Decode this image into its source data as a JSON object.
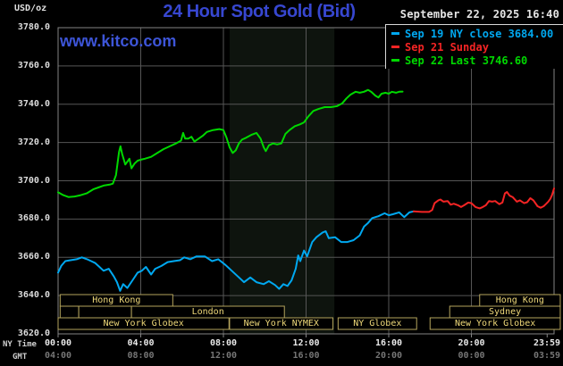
{
  "header": {
    "units_label": "USD/oz",
    "title": "24 Hour Spot Gold (Bid)",
    "datetime": "September 22, 2025 16:40",
    "watermark": "www.kitco.com",
    "title_color": "#3747d0",
    "watermark_color": "#3d55d8"
  },
  "axis_names": {
    "ny": "NY Time",
    "gmt": "GMT"
  },
  "legend": [
    {
      "label": "Sep 19 NY close 3684.00",
      "color": "#00a8f0"
    },
    {
      "label": "Sep 21 Sunday",
      "color": "#f42424"
    },
    {
      "label": "Sep 22 Last 3746.60",
      "color": "#00d800"
    }
  ],
  "sessions": {
    "box_border_color": "#b4a45c",
    "label_color": "#eed879",
    "rows": [
      {
        "boxes": [
          {
            "label": "Hong Kong",
            "start_h": 0.1,
            "end_h": 5.55
          },
          {
            "label": "Hong Kong",
            "start_h": 20.4,
            "end_h": 24.3
          }
        ]
      },
      {
        "boxes": [
          {
            "label": "",
            "start_h": 0.1,
            "end_h": 1.0
          },
          {
            "label": "",
            "start_h": 1.0,
            "end_h": 3.55
          },
          {
            "label": "London",
            "start_h": 3.55,
            "end_h": 10.95
          },
          {
            "label": "Sydney",
            "start_h": 18.95,
            "end_h": 24.3
          }
        ]
      },
      {
        "boxes": [
          {
            "label": "New York Globex",
            "start_h": 0.0,
            "end_h": 8.27
          },
          {
            "label": "New York NYMEX",
            "start_h": 8.3,
            "end_h": 13.3
          },
          {
            "label": "NY Globex",
            "start_h": 13.55,
            "end_h": 17.35
          },
          {
            "label": "New York Globex",
            "start_h": 18.0,
            "end_h": 24.3
          }
        ]
      }
    ]
  },
  "chart_data": {
    "type": "line",
    "title": "24 Hour Spot Gold (Bid)",
    "ylabel": "USD/oz",
    "ylim": [
      3620,
      3780
    ],
    "yticks": [
      3620,
      3640,
      3660,
      3680,
      3700,
      3720,
      3740,
      3760,
      3780
    ],
    "xlim_hours": [
      0,
      24
    ],
    "grid": true,
    "legend_position": "top-right",
    "highlight_band": {
      "start_h": 8.3,
      "end_h": 13.37,
      "color": "#0e140e"
    },
    "xticks": [
      {
        "h": 0,
        "ny": "00:00",
        "gmt": "04:00"
      },
      {
        "h": 4,
        "ny": "04:00",
        "gmt": "08:00"
      },
      {
        "h": 8,
        "ny": "08:00",
        "gmt": "12:00"
      },
      {
        "h": 12,
        "ny": "12:00",
        "gmt": "16:00"
      },
      {
        "h": 16,
        "ny": "16:00",
        "gmt": "20:00"
      },
      {
        "h": 20,
        "ny": "20:00",
        "gmt": "00:00"
      },
      {
        "h": 23.666,
        "ny": "23:59",
        "gmt": "03:59"
      }
    ],
    "series": [
      {
        "name": "Sep 19 NY close 3684.00",
        "color": "#00a8f0",
        "points": [
          [
            0,
            3652
          ],
          [
            0.15,
            3655.5
          ],
          [
            0.35,
            3658
          ],
          [
            0.6,
            3658.5
          ],
          [
            0.9,
            3659
          ],
          [
            1.15,
            3660
          ],
          [
            1.4,
            3659
          ],
          [
            1.6,
            3658
          ],
          [
            1.8,
            3657
          ],
          [
            2.0,
            3655
          ],
          [
            2.2,
            3653
          ],
          [
            2.45,
            3654
          ],
          [
            2.7,
            3650
          ],
          [
            2.85,
            3647
          ],
          [
            3.0,
            3642.5
          ],
          [
            3.15,
            3646
          ],
          [
            3.35,
            3644
          ],
          [
            3.6,
            3648
          ],
          [
            3.85,
            3652
          ],
          [
            4.05,
            3653
          ],
          [
            4.25,
            3655
          ],
          [
            4.5,
            3651
          ],
          [
            4.7,
            3654
          ],
          [
            5.0,
            3655.5
          ],
          [
            5.3,
            3657.5
          ],
          [
            5.6,
            3658
          ],
          [
            5.9,
            3658.5
          ],
          [
            6.1,
            3660
          ],
          [
            6.4,
            3659
          ],
          [
            6.7,
            3660.5
          ],
          [
            7.1,
            3660.5
          ],
          [
            7.45,
            3658
          ],
          [
            7.75,
            3659
          ],
          [
            8.1,
            3656
          ],
          [
            8.4,
            3653
          ],
          [
            8.7,
            3650
          ],
          [
            9.0,
            3647
          ],
          [
            9.3,
            3649.5
          ],
          [
            9.6,
            3647
          ],
          [
            9.95,
            3646
          ],
          [
            10.2,
            3647.5
          ],
          [
            10.5,
            3645.5
          ],
          [
            10.7,
            3643.5
          ],
          [
            10.9,
            3646
          ],
          [
            11.1,
            3645
          ],
          [
            11.3,
            3648
          ],
          [
            11.5,
            3654
          ],
          [
            11.62,
            3661
          ],
          [
            11.72,
            3658
          ],
          [
            11.9,
            3663.5
          ],
          [
            12.05,
            3660.5
          ],
          [
            12.3,
            3668
          ],
          [
            12.5,
            3670.5
          ],
          [
            12.8,
            3673
          ],
          [
            12.95,
            3673.6
          ],
          [
            13.1,
            3670
          ],
          [
            13.4,
            3670.5
          ],
          [
            13.7,
            3668
          ],
          [
            14.0,
            3668
          ],
          [
            14.3,
            3669
          ],
          [
            14.6,
            3671.5
          ],
          [
            14.8,
            3676
          ],
          [
            15.0,
            3678
          ],
          [
            15.2,
            3680.5
          ],
          [
            15.5,
            3681.5
          ],
          [
            15.8,
            3683
          ],
          [
            16.0,
            3682
          ],
          [
            16.2,
            3682.5
          ],
          [
            16.5,
            3683.5
          ],
          [
            16.75,
            3681
          ],
          [
            17.0,
            3683.5
          ],
          [
            17.2,
            3684
          ]
        ]
      },
      {
        "name": "Sep 21 Sunday",
        "color": "#f42424",
        "points": [
          [
            17.2,
            3684
          ],
          [
            17.6,
            3683.7
          ],
          [
            17.95,
            3683.7
          ],
          [
            18.1,
            3684.7
          ],
          [
            18.22,
            3688.3
          ],
          [
            18.4,
            3689.8
          ],
          [
            18.5,
            3690.2
          ],
          [
            18.65,
            3689.1
          ],
          [
            18.85,
            3689.4
          ],
          [
            19.0,
            3687.5
          ],
          [
            19.15,
            3688
          ],
          [
            19.35,
            3687.2
          ],
          [
            19.5,
            3686.3
          ],
          [
            19.65,
            3687.2
          ],
          [
            19.85,
            3688.6
          ],
          [
            20.0,
            3688.3
          ],
          [
            20.2,
            3686.3
          ],
          [
            20.4,
            3685.6
          ],
          [
            20.55,
            3686.3
          ],
          [
            20.7,
            3687.2
          ],
          [
            20.85,
            3689.4
          ],
          [
            21.0,
            3689.1
          ],
          [
            21.15,
            3689.4
          ],
          [
            21.35,
            3687.8
          ],
          [
            21.5,
            3688.6
          ],
          [
            21.62,
            3693.4
          ],
          [
            21.72,
            3694.1
          ],
          [
            21.85,
            3692.2
          ],
          [
            22.0,
            3691.4
          ],
          [
            22.2,
            3689.1
          ],
          [
            22.35,
            3689.8
          ],
          [
            22.55,
            3688.3
          ],
          [
            22.7,
            3688.8
          ],
          [
            22.85,
            3690.9
          ],
          [
            23.0,
            3689.8
          ],
          [
            23.2,
            3686.7
          ],
          [
            23.35,
            3685.9
          ],
          [
            23.5,
            3686.7
          ],
          [
            23.6,
            3687.8
          ],
          [
            23.72,
            3689.1
          ],
          [
            23.82,
            3690.6
          ],
          [
            23.9,
            3692.5
          ],
          [
            24.0,
            3696
          ]
        ]
      },
      {
        "name": "Sep 22 Last 3746.60",
        "color": "#00d800",
        "points": [
          [
            0,
            3694
          ],
          [
            0.25,
            3692.5
          ],
          [
            0.5,
            3691.5
          ],
          [
            0.8,
            3691.8
          ],
          [
            1.1,
            3692.5
          ],
          [
            1.4,
            3693.5
          ],
          [
            1.7,
            3695.5
          ],
          [
            1.95,
            3696.5
          ],
          [
            2.2,
            3697.5
          ],
          [
            2.5,
            3698
          ],
          [
            2.65,
            3698.5
          ],
          [
            2.8,
            3703
          ],
          [
            2.95,
            3715
          ],
          [
            3.02,
            3718
          ],
          [
            3.1,
            3714
          ],
          [
            3.25,
            3708.5
          ],
          [
            3.45,
            3711.5
          ],
          [
            3.55,
            3706.5
          ],
          [
            3.7,
            3709
          ],
          [
            3.85,
            3710.5
          ],
          [
            4.0,
            3711
          ],
          [
            4.2,
            3711.5
          ],
          [
            4.5,
            3712.5
          ],
          [
            4.8,
            3714.5
          ],
          [
            5.1,
            3716.5
          ],
          [
            5.4,
            3718
          ],
          [
            5.7,
            3719.5
          ],
          [
            5.95,
            3721
          ],
          [
            6.05,
            3725
          ],
          [
            6.15,
            3722
          ],
          [
            6.3,
            3722
          ],
          [
            6.45,
            3723
          ],
          [
            6.6,
            3720.5
          ],
          [
            6.8,
            3722
          ],
          [
            7.0,
            3723.5
          ],
          [
            7.2,
            3725.5
          ],
          [
            7.5,
            3726.5
          ],
          [
            7.8,
            3727
          ],
          [
            8.0,
            3726.5
          ],
          [
            8.15,
            3722.5
          ],
          [
            8.3,
            3717.5
          ],
          [
            8.45,
            3714.5
          ],
          [
            8.6,
            3716
          ],
          [
            8.75,
            3719.5
          ],
          [
            8.9,
            3721.5
          ],
          [
            9.1,
            3722.5
          ],
          [
            9.35,
            3724
          ],
          [
            9.6,
            3725
          ],
          [
            9.8,
            3722
          ],
          [
            9.95,
            3717.5
          ],
          [
            10.05,
            3715.5
          ],
          [
            10.2,
            3718.5
          ],
          [
            10.4,
            3719.5
          ],
          [
            10.6,
            3719
          ],
          [
            10.8,
            3719.5
          ],
          [
            11.0,
            3724.5
          ],
          [
            11.2,
            3726.5
          ],
          [
            11.45,
            3728.5
          ],
          [
            11.7,
            3729.5
          ],
          [
            11.9,
            3730.5
          ],
          [
            12.1,
            3733.5
          ],
          [
            12.35,
            3736.5
          ],
          [
            12.6,
            3737.5
          ],
          [
            12.9,
            3738.5
          ],
          [
            13.2,
            3738.5
          ],
          [
            13.5,
            3739
          ],
          [
            13.75,
            3740.5
          ],
          [
            13.95,
            3743
          ],
          [
            14.15,
            3745
          ],
          [
            14.4,
            3746.5
          ],
          [
            14.6,
            3746
          ],
          [
            14.8,
            3746.5
          ],
          [
            15.0,
            3747.5
          ],
          [
            15.15,
            3746.5
          ],
          [
            15.35,
            3744.5
          ],
          [
            15.5,
            3743.5
          ],
          [
            15.65,
            3745.5
          ],
          [
            15.85,
            3746
          ],
          [
            16.0,
            3745.5
          ],
          [
            16.15,
            3746.5
          ],
          [
            16.35,
            3746
          ],
          [
            16.5,
            3746.5
          ],
          [
            16.67,
            3746.6
          ]
        ]
      }
    ],
    "colors": {
      "grid": "#565656",
      "border": "#848484",
      "background": "#000000"
    }
  }
}
